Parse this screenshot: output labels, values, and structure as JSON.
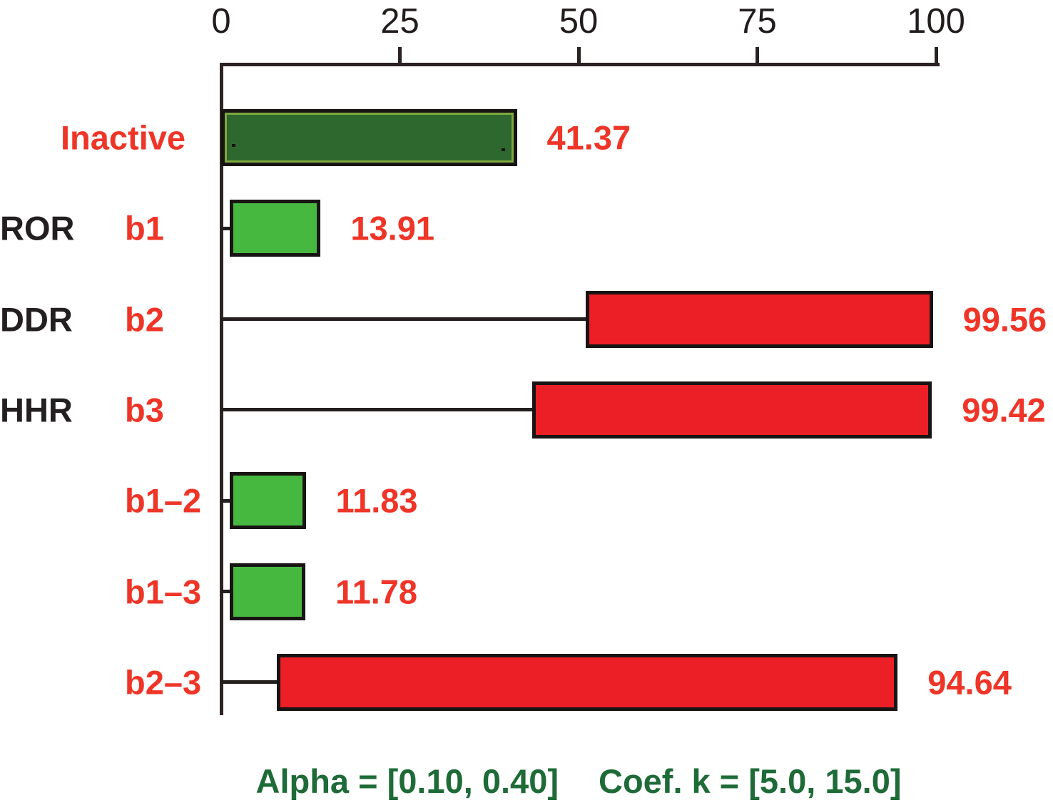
{
  "chart_data": {
    "type": "bar",
    "orientation": "horizontal",
    "title": "",
    "xlabel": "",
    "ylabel": "",
    "xlim": [
      0,
      100
    ],
    "x_ticks": [
      0,
      25,
      50,
      75,
      100
    ],
    "axis_position": "top",
    "grid": false,
    "legend": false,
    "rows": [
      {
        "group": "",
        "label": "Inactive",
        "value": 41.37,
        "value_text": "41.37",
        "bar_start": 0,
        "bar_end": 41.37,
        "style": "inactive"
      },
      {
        "group": "ROR",
        "label": "b1",
        "value": 13.91,
        "value_text": "13.91",
        "bar_start": 1.2,
        "bar_end": 13.91,
        "style": "green"
      },
      {
        "group": "DDR",
        "label": "b2",
        "value": 99.56,
        "value_text": "99.56",
        "bar_start": 51.0,
        "bar_end": 99.56,
        "style": "red"
      },
      {
        "group": "HHR",
        "label": "b3",
        "value": 99.42,
        "value_text": "99.42",
        "bar_start": 43.5,
        "bar_end": 99.42,
        "style": "red"
      },
      {
        "group": "",
        "label": "b1–2",
        "value": 11.83,
        "value_text": "11.83",
        "bar_start": 1.2,
        "bar_end": 11.83,
        "style": "green"
      },
      {
        "group": "",
        "label": "b1–3",
        "value": 11.78,
        "value_text": "11.78",
        "bar_start": 1.2,
        "bar_end": 11.78,
        "style": "green"
      },
      {
        "group": "",
        "label": "b2–3",
        "value": 94.64,
        "value_text": "94.64",
        "bar_start": 7.8,
        "bar_end": 94.64,
        "style": "red"
      }
    ],
    "colors": {
      "bar_red": "#ed1f26",
      "bar_green": "#47b83f",
      "bar_inactive_fill": "#2e682f",
      "bar_inactive_frame": "#7ea83e",
      "bar_border": "#191414",
      "value_text": "#ee3528",
      "sub_label_text": "#ee3528",
      "group_label_text": "#231f20",
      "tick_label_text": "#221c1c",
      "axis_line": "#2a2222",
      "caption_text": "#1e6b38"
    },
    "caption": {
      "alpha": "Alpha = [0.10, 0.40]",
      "coef": "Coef. k = [5.0, 15.0]"
    }
  }
}
